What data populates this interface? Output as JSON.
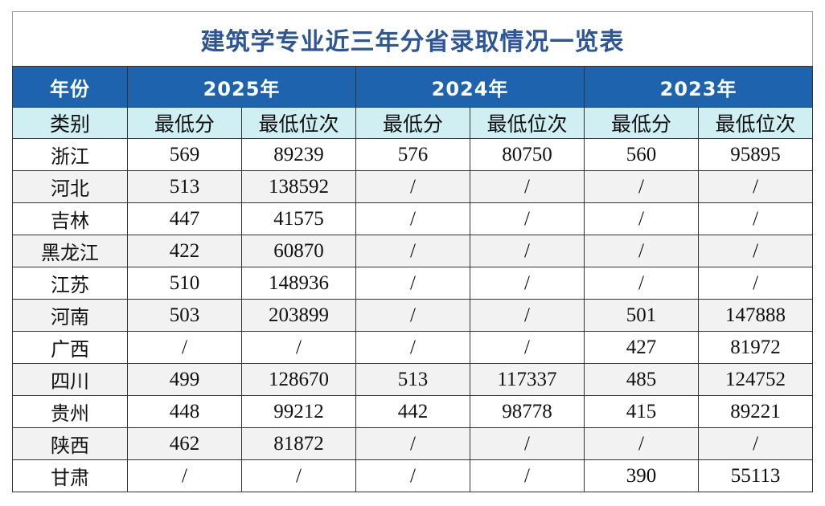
{
  "title": "建筑学专业近三年分省录取情况一览表",
  "header": {
    "year_label": "年份",
    "years": [
      "2025年",
      "2024年",
      "2023年"
    ],
    "category_label": "类别",
    "sub_labels": [
      "最低分",
      "最低位次",
      "最低分",
      "最低位次",
      "最低分",
      "最低位次"
    ]
  },
  "rows": [
    {
      "province": "浙江",
      "cells": [
        "569",
        "89239",
        "576",
        "80750",
        "560",
        "95895"
      ]
    },
    {
      "province": "河北",
      "cells": [
        "513",
        "138592",
        "/",
        "/",
        "/",
        "/"
      ]
    },
    {
      "province": "吉林",
      "cells": [
        "447",
        "41575",
        "/",
        "/",
        "/",
        "/"
      ]
    },
    {
      "province": "黑龙江",
      "cells": [
        "422",
        "60870",
        "/",
        "/",
        "/",
        "/"
      ]
    },
    {
      "province": "江苏",
      "cells": [
        "510",
        "148936",
        "/",
        "/",
        "/",
        "/"
      ]
    },
    {
      "province": "河南",
      "cells": [
        "503",
        "203899",
        "/",
        "/",
        "501",
        "147888"
      ]
    },
    {
      "province": "广西",
      "cells": [
        "/",
        "/",
        "/",
        "/",
        "427",
        "81972"
      ]
    },
    {
      "province": "四川",
      "cells": [
        "499",
        "128670",
        "513",
        "117337",
        "485",
        "124752"
      ]
    },
    {
      "province": "贵州",
      "cells": [
        "448",
        "99212",
        "442",
        "98778",
        "415",
        "89221"
      ]
    },
    {
      "province": "陕西",
      "cells": [
        "462",
        "81872",
        "/",
        "/",
        "/",
        "/"
      ]
    },
    {
      "province": "甘肃",
      "cells": [
        "/",
        "/",
        "/",
        "/",
        "390",
        "55113"
      ]
    }
  ],
  "colors": {
    "title": "#2d5696",
    "header_bg": "#1d63ad",
    "subheader_bg": "#cfeff2",
    "alt_row_bg": "#f2f2f2"
  }
}
